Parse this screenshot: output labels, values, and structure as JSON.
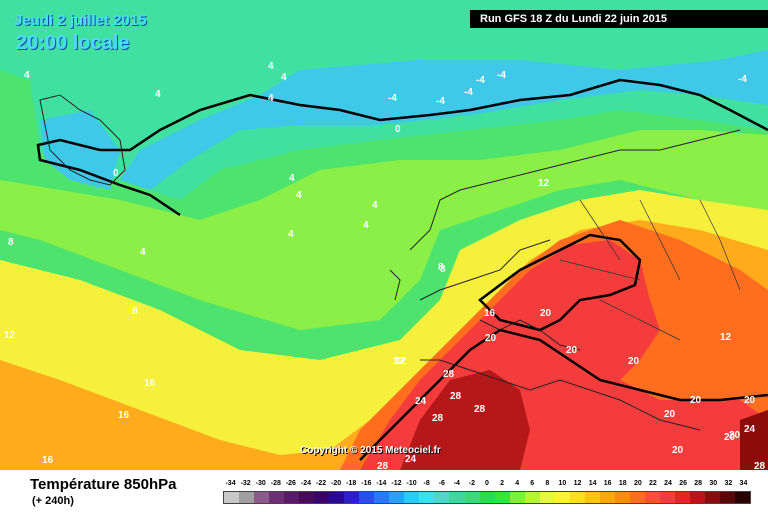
{
  "header": {
    "date": "Jeudi 2 juillet 2015",
    "time": "20:00 locale",
    "run": "Run GFS 18 Z du Lundi 22 juin 2015"
  },
  "footer": {
    "title": "Température 850hPa",
    "lead": "(+ 240h)",
    "copyright": "Copyright © 2015 Meteociel.fr"
  },
  "legend": {
    "ticks": [
      "-34",
      "-32",
      "-30",
      "-28",
      "-26",
      "-24",
      "-22",
      "-20",
      "-18",
      "-16",
      "-14",
      "-12",
      "-10",
      "-8",
      "-6",
      "-4",
      "-2",
      "0",
      "2",
      "4",
      "6",
      "8",
      "10",
      "12",
      "14",
      "16",
      "18",
      "20",
      "22",
      "24",
      "26",
      "28",
      "30",
      "32",
      "34"
    ],
    "colors": [
      "#c8c8c8",
      "#a0a0a0",
      "#8c5a8c",
      "#6e2f74",
      "#5a1a66",
      "#4a0a5a",
      "#3a006e",
      "#2a0896",
      "#2c1fc8",
      "#2d4bf0",
      "#2a78ff",
      "#2aa0ff",
      "#32c8ff",
      "#44dcf0",
      "#4ad8c8",
      "#3ed7a0",
      "#39d878",
      "#2bdc50",
      "#35e43c",
      "#7ef03a",
      "#b6f43c",
      "#e6f83c",
      "#fff03c",
      "#ffdc2c",
      "#ffc21e",
      "#ffa518",
      "#ff8a18",
      "#ff6e1e",
      "#ff5030",
      "#f53c3c",
      "#dc2828",
      "#b41818",
      "#8c0c0c",
      "#5a0606",
      "#2a0000"
    ]
  },
  "map_labels": [
    {
      "text": "4"
    },
    {
      "text": "4"
    },
    {
      "text": "4"
    },
    {
      "text": "4"
    },
    {
      "text": "4"
    },
    {
      "text": "-4"
    },
    {
      "text": "-4"
    },
    {
      "text": "-4"
    },
    {
      "text": "-4"
    },
    {
      "text": "-4"
    },
    {
      "text": "-4"
    },
    {
      "text": "0"
    },
    {
      "text": "0"
    },
    {
      "text": "4"
    },
    {
      "text": "4"
    },
    {
      "text": "4"
    },
    {
      "text": "4"
    },
    {
      "text": "4"
    },
    {
      "text": "4"
    },
    {
      "text": "8"
    },
    {
      "text": "8"
    },
    {
      "text": "8"
    },
    {
      "text": "12"
    },
    {
      "text": "12"
    },
    {
      "text": "12"
    },
    {
      "text": "16"
    },
    {
      "text": "16"
    },
    {
      "text": "16"
    },
    {
      "text": "16"
    },
    {
      "text": "12"
    },
    {
      "text": "20"
    },
    {
      "text": "20"
    },
    {
      "text": "20"
    },
    {
      "text": "20"
    },
    {
      "text": "28"
    },
    {
      "text": "24"
    },
    {
      "text": "28"
    },
    {
      "text": "28"
    },
    {
      "text": "28"
    },
    {
      "text": "24"
    },
    {
      "text": "28"
    },
    {
      "text": "20"
    },
    {
      "text": "20"
    },
    {
      "text": "20"
    },
    {
      "text": "20"
    },
    {
      "text": "24"
    },
    {
      "text": "20"
    },
    {
      "text": "20"
    },
    {
      "text": "28"
    },
    {
      "text": "12"
    },
    {
      "text": "8"
    }
  ]
}
